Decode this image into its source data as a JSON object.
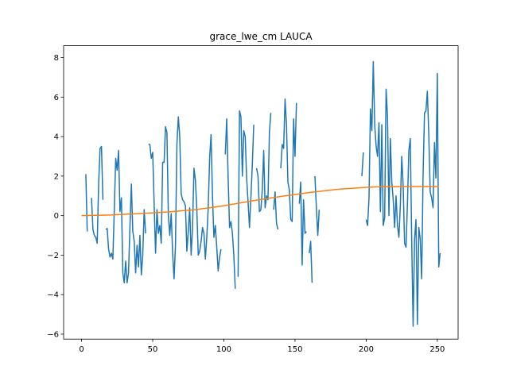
{
  "chart_data": {
    "type": "line",
    "title": "grace_lwe_cm LAUCA",
    "xlabel": "",
    "ylabel": "",
    "xlim": [
      -12.6,
      264.6
    ],
    "ylim": [
      -6.25,
      8.6
    ],
    "xticks": [
      0,
      50,
      100,
      150,
      200,
      250
    ],
    "yticks": [
      -6,
      -4,
      -2,
      0,
      2,
      4,
      6,
      8
    ],
    "grid": false,
    "legend": "none",
    "series": [
      {
        "color": "#1f77b4",
        "points": [
          [
            3,
            2.1
          ],
          [
            4,
            -0.8
          ],
          [
            null,
            null
          ],
          [
            7,
            0.9
          ],
          [
            8,
            -0.7
          ],
          [
            9,
            -1.0
          ],
          [
            10,
            -1.1
          ],
          [
            11,
            -1.4
          ],
          [
            12,
            1.6
          ],
          [
            13,
            3.4
          ],
          [
            14,
            3.5
          ],
          [
            15,
            0.8
          ],
          [
            null,
            null
          ],
          [
            17,
            -0.7
          ],
          [
            18,
            -0.65
          ],
          [
            19,
            -1.7
          ],
          [
            20,
            -2.1
          ],
          [
            21,
            -1.9
          ],
          [
            22,
            -2.2
          ],
          [
            23,
            0.3
          ],
          [
            24,
            2.9
          ],
          [
            25,
            2.3
          ],
          [
            26,
            3.3
          ],
          [
            27,
            0.2
          ],
          [
            28,
            0.9
          ],
          [
            29,
            -2.9
          ],
          [
            30,
            -3.4
          ],
          [
            31,
            -2.3
          ],
          [
            32,
            -3.4
          ],
          [
            33,
            -2.9
          ],
          [
            34,
            -0.6
          ],
          [
            35,
            1.6
          ],
          [
            36,
            -0.8
          ],
          [
            37,
            -1.3
          ],
          [
            38,
            -2.9
          ],
          [
            39,
            -1.5
          ],
          [
            40,
            -2.6
          ],
          [
            41,
            -1.0
          ],
          [
            42,
            -3.0
          ],
          [
            43,
            -2.0
          ],
          [
            44,
            0.3
          ],
          [
            45,
            -0.9
          ],
          [
            null,
            null
          ],
          [
            47,
            3.6
          ],
          [
            48,
            3.6
          ],
          [
            49,
            2.9
          ],
          [
            50,
            3.2
          ],
          [
            51,
            0.6
          ],
          [
            52,
            -1.9
          ],
          [
            53,
            0.3
          ],
          [
            54,
            -0.9
          ],
          [
            55,
            -0.5
          ],
          [
            56,
            -1.4
          ],
          [
            57,
            2.7
          ],
          [
            58,
            2.7
          ],
          [
            59,
            4.5
          ],
          [
            60,
            4.2
          ],
          [
            61,
            0.0
          ],
          [
            62,
            -1.0
          ],
          [
            63,
            0.1
          ],
          [
            64,
            -1.9
          ],
          [
            65,
            -3.2
          ],
          [
            66,
            -1.5
          ],
          [
            67,
            3.6
          ],
          [
            68,
            5.0
          ],
          [
            69,
            4.0
          ],
          [
            70,
            1.1
          ],
          [
            71,
            0.8
          ],
          [
            72,
            0.7
          ],
          [
            73,
            0.5
          ],
          [
            74,
            -1.8
          ],
          [
            75,
            -0.8
          ],
          [
            76,
            0.4
          ],
          [
            77,
            -2.0
          ],
          [
            78,
            -0.6
          ],
          [
            79,
            2.4
          ],
          [
            80,
            1.8
          ],
          [
            81,
            0.3
          ],
          [
            82,
            -2.0
          ],
          [
            83,
            -1.8
          ],
          [
            84,
            -1.3
          ],
          [
            85,
            -0.6
          ],
          [
            86,
            -0.9
          ],
          [
            87,
            -2.2
          ],
          [
            88,
            -1.1
          ],
          [
            89,
            0.4
          ],
          [
            90,
            2.9
          ],
          [
            91,
            4.1
          ],
          [
            92,
            1.0
          ],
          [
            93,
            -1.1
          ],
          [
            94,
            -0.5
          ],
          [
            95,
            -1.6
          ],
          [
            96,
            -2.8
          ],
          [
            97,
            -2.1
          ],
          [
            98,
            -1.7
          ],
          [
            null,
            null
          ],
          [
            101,
            3.1
          ],
          [
            102,
            4.9
          ],
          [
            103,
            1.9
          ],
          [
            104,
            -0.6
          ],
          [
            105,
            -0.3
          ],
          [
            106,
            -0.9
          ],
          [
            107,
            -2.0
          ],
          [
            108,
            -3.7
          ],
          [
            null,
            null
          ],
          [
            110,
            -3.1
          ],
          [
            111,
            5.3
          ],
          [
            112,
            5.0
          ],
          [
            113,
            2.0
          ],
          [
            114,
            4.3
          ],
          [
            115,
            4.0
          ],
          [
            116,
            1.9
          ],
          [
            117,
            0.7
          ],
          [
            118,
            -0.6
          ],
          [
            119,
            0.9
          ],
          [
            120,
            2.6
          ],
          [
            121,
            4.6
          ],
          [
            null,
            null
          ],
          [
            123,
            2.4
          ],
          [
            124,
            2.0
          ],
          [
            125,
            0.2
          ],
          [
            126,
            0.3
          ],
          [
            127,
            1.3
          ],
          [
            128,
            3.3
          ],
          [
            129,
            0.4
          ],
          [
            130,
            1.0
          ],
          [
            131,
            0.8
          ],
          [
            132,
            4.2
          ],
          [
            133,
            5.2
          ],
          [
            null,
            null
          ],
          [
            135,
            0.3
          ],
          [
            136,
            1.2
          ],
          [
            137,
            -0.4
          ],
          [
            138,
            -0.7
          ],
          [
            null,
            null
          ],
          [
            140,
            2.4
          ],
          [
            141,
            3.6
          ],
          [
            142,
            3.4
          ],
          [
            143,
            5.9
          ],
          [
            144,
            4.6
          ],
          [
            145,
            1.7
          ],
          [
            146,
            1.3
          ],
          [
            147,
            -0.2
          ],
          [
            148,
            -0.3
          ],
          [
            149,
            4.9
          ],
          [
            150,
            3.0
          ],
          [
            151,
            5.7
          ],
          [
            null,
            null
          ],
          [
            153,
            0.6
          ],
          [
            154,
            1.7
          ],
          [
            155,
            -2.5
          ],
          [
            156,
            0.8
          ],
          [
            157,
            -0.9
          ],
          [
            158,
            -0.8
          ],
          [
            null,
            null
          ],
          [
            160,
            -1.9
          ],
          [
            161,
            -1.3
          ],
          [
            162,
            -3.4
          ],
          [
            null,
            null
          ],
          [
            164,
            2.0
          ],
          [
            165,
            0.4
          ],
          [
            166,
            -1.0
          ],
          [
            167,
            0.3
          ],
          [
            null,
            null
          ],
          [
            197,
            2.0
          ],
          [
            198,
            3.2
          ],
          [
            null,
            null
          ],
          [
            200,
            -0.2
          ],
          [
            201,
            -0.5
          ],
          [
            202,
            0.9
          ],
          [
            203,
            5.4
          ],
          [
            204,
            4.3
          ],
          [
            205,
            7.8
          ],
          [
            206,
            4.6
          ],
          [
            207,
            3.5
          ],
          [
            208,
            3.0
          ],
          [
            209,
            4.7
          ],
          [
            210,
            0.2
          ],
          [
            211,
            4.6
          ],
          [
            212,
            -0.5
          ],
          [
            213,
            -0.1
          ],
          [
            214,
            6.4
          ],
          [
            215,
            5.0
          ],
          [
            216,
            0.0
          ],
          [
            217,
            3.9
          ],
          [
            218,
            1.7
          ],
          [
            219,
            0.8
          ],
          [
            220,
            -0.6
          ],
          [
            221,
            1.0
          ],
          [
            222,
            -0.5
          ],
          [
            223,
            -1.1
          ],
          [
            224,
            0.5
          ],
          [
            225,
            3.0
          ],
          [
            226,
            1.5
          ],
          [
            227,
            -1.4
          ],
          [
            228,
            -1.6
          ],
          [
            229,
            0.6
          ],
          [
            230,
            3.3
          ],
          [
            231,
            3.9
          ],
          [
            232,
            -1.3
          ],
          [
            233,
            -5.6
          ],
          [
            234,
            -1.2
          ],
          [
            235,
            -0.2
          ],
          [
            236,
            -5.5
          ],
          [
            237,
            -0.6
          ],
          [
            238,
            -1.2
          ],
          [
            239,
            -3.2
          ],
          [
            240,
            2.1
          ],
          [
            241,
            5.2
          ],
          [
            242,
            5.3
          ],
          [
            243,
            6.3
          ],
          [
            244,
            4.1
          ],
          [
            245,
            1.2
          ],
          [
            246,
            0.9
          ],
          [
            247,
            0.4
          ],
          [
            248,
            3.7
          ],
          [
            249,
            1.9
          ],
          [
            250,
            7.2
          ],
          [
            251,
            -2.6
          ],
          [
            252,
            -1.9
          ]
        ]
      },
      {
        "color": "#ff7f0e",
        "points": [
          [
            0,
            0.0
          ],
          [
            20,
            0.03
          ],
          [
            40,
            0.1
          ],
          [
            60,
            0.18
          ],
          [
            80,
            0.3
          ],
          [
            100,
            0.5
          ],
          [
            120,
            0.75
          ],
          [
            140,
            0.97
          ],
          [
            160,
            1.17
          ],
          [
            180,
            1.33
          ],
          [
            200,
            1.43
          ],
          [
            210,
            1.46
          ],
          [
            230,
            1.47
          ],
          [
            251,
            1.47
          ]
        ]
      }
    ]
  }
}
